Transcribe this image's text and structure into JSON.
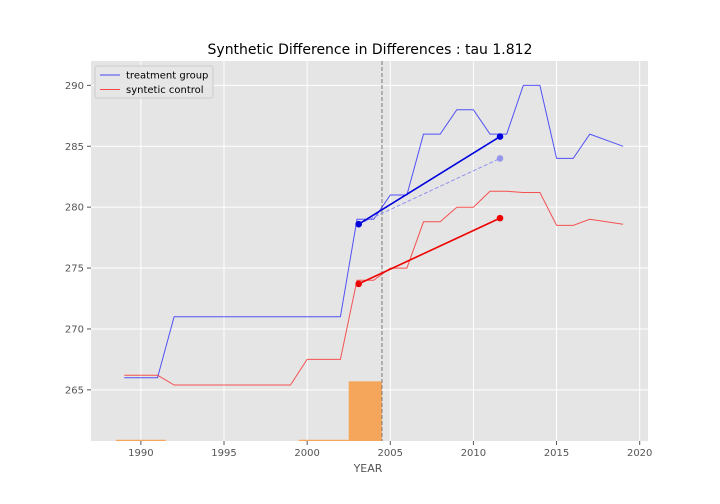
{
  "chart_data": {
    "type": "line",
    "title": "Synthetic Difference in Differences : tau 1.812",
    "xlabel": "YEAR",
    "ylabel": "",
    "xlim": [
      1987,
      2020.5
    ],
    "ylim": [
      260.8,
      292.0
    ],
    "xticks": [
      1990,
      1995,
      2000,
      2005,
      2010,
      2015,
      2020
    ],
    "yticks": [
      265,
      270,
      275,
      280,
      285,
      290
    ],
    "grid": true,
    "legend_position": "top-left",
    "treatment_year": 2004.5,
    "series": [
      {
        "name": "treatment group",
        "color": "#0000ff",
        "x": [
          1989,
          1990,
          1991,
          1992,
          1993,
          1994,
          1995,
          1996,
          1997,
          1998,
          1999,
          2000,
          2001,
          2002,
          2003,
          2004,
          2005,
          2006,
          2007,
          2008,
          2009,
          2010,
          2011,
          2012,
          2013,
          2014,
          2015,
          2016,
          2017,
          2018,
          2019
        ],
        "y": [
          266,
          266,
          266,
          271,
          271,
          271,
          271,
          271,
          271,
          271,
          271,
          271,
          271,
          271,
          279,
          279,
          281,
          281,
          286,
          286,
          288,
          288,
          286,
          286,
          290,
          290,
          284,
          284,
          286,
          285.5,
          285
        ]
      },
      {
        "name": "syntetic control",
        "color": "#ff0000",
        "x": [
          1989,
          1990,
          1991,
          1992,
          1993,
          1994,
          1995,
          1996,
          1997,
          1998,
          1999,
          2000,
          2001,
          2002,
          2003,
          2004,
          2005,
          2006,
          2007,
          2008,
          2009,
          2010,
          2011,
          2012,
          2013,
          2014,
          2015,
          2016,
          2017,
          2018,
          2019
        ],
        "y": [
          266.2,
          266.2,
          266.2,
          265.4,
          265.4,
          265.4,
          265.4,
          265.4,
          265.4,
          265.4,
          265.4,
          267.5,
          267.5,
          267.5,
          274,
          274,
          275,
          275,
          278.8,
          278.8,
          280,
          280,
          281.3,
          281.3,
          281.2,
          281.2,
          278.5,
          278.5,
          279,
          278.8,
          278.6
        ]
      }
    ],
    "did_lines": {
      "treatment": {
        "x": [
          2003.1,
          2011.6
        ],
        "y": [
          278.6,
          285.8
        ],
        "color": "#0000dd"
      },
      "control": {
        "x": [
          2003.1,
          2011.6
        ],
        "y": [
          273.7,
          279.1
        ],
        "color": "#ee0000"
      },
      "counterfactual": {
        "x": [
          2003.1,
          2011.6
        ],
        "y": [
          278.6,
          284.0
        ],
        "color": "#8888ee"
      }
    },
    "weight_bars": {
      "color": "#f5a65b",
      "items": [
        {
          "x0": 1988.5,
          "x1": 1991.5,
          "value": 260.9
        },
        {
          "x0": 1999.5,
          "x1": 2002.5,
          "value": 260.9
        },
        {
          "x0": 2002.5,
          "x1": 2004.5,
          "value": 265.7
        }
      ]
    }
  }
}
